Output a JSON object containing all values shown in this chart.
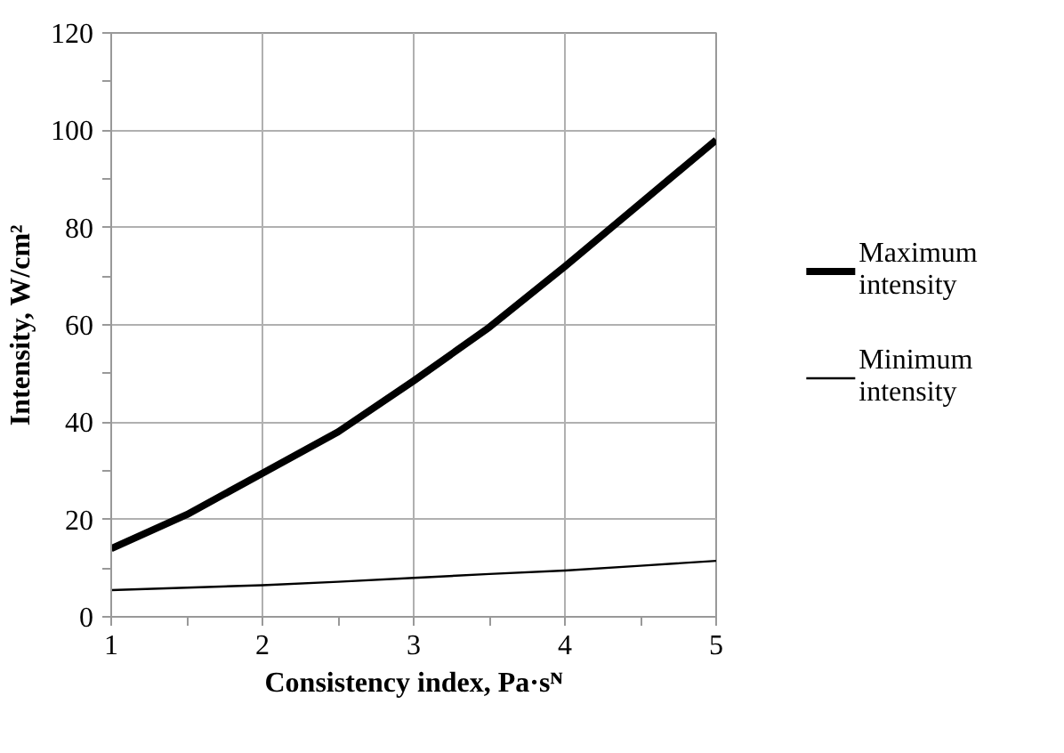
{
  "chart_data": {
    "type": "line",
    "xlabel": "Consistency index, Pa·sᴺ",
    "ylabel": "Intensity, W/cm²",
    "x": [
      1,
      1.5,
      2,
      2.5,
      3,
      3.5,
      4,
      4.5,
      5
    ],
    "series": [
      {
        "name": "Maximum intensity",
        "color": "#000000",
        "values": [
          14,
          21,
          29.5,
          38,
          48.5,
          59.5,
          72,
          85,
          98
        ]
      },
      {
        "name": "Minimum intensity",
        "color": "#000000",
        "values": [
          5.5,
          6,
          6.5,
          7.2,
          8,
          8.8,
          9.5,
          10.5,
          11.5
        ]
      }
    ],
    "xlim": [
      1,
      5
    ],
    "ylim": [
      0,
      120
    ],
    "xticks": [
      1,
      {
        "value": 1.5,
        "label": null
      },
      2,
      {
        "value": 2.5,
        "label": null
      },
      3,
      {
        "value": 3.5,
        "label": null
      },
      4,
      {
        "value": 4.5,
        "label": null
      },
      5
    ],
    "yticks": [
      0,
      {
        "value": 10,
        "label": null
      },
      20,
      {
        "value": 30,
        "label": null
      },
      40,
      {
        "value": 50,
        "label": null
      },
      60,
      {
        "value": 70,
        "label": null
      },
      80,
      {
        "value": 90,
        "label": null
      },
      100,
      {
        "value": 110,
        "label": null
      },
      120
    ],
    "grid": true,
    "legend": "right",
    "marker": "none",
    "line_style": "solid"
  }
}
